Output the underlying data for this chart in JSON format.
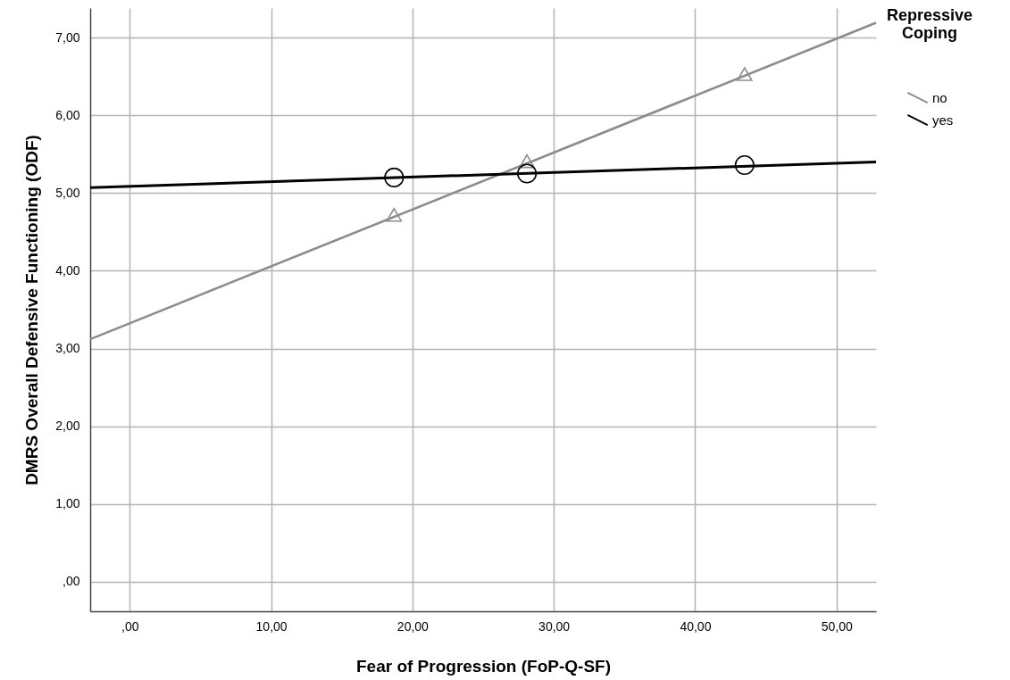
{
  "chart_data": {
    "type": "line",
    "xlabel": "Fear of Progression (FoP-Q-SF)",
    "ylabel": "DMRS Overall Defensive Functioning (ODF)",
    "legend_title": "Repressive Coping",
    "legend": "right",
    "grid": true,
    "xlim": [
      -2.8,
      52.8
    ],
    "ylim": [
      -0.38,
      7.38
    ],
    "xticks": [
      {
        "value": 0,
        "label": ",00"
      },
      {
        "value": 10,
        "label": "10,00"
      },
      {
        "value": 20,
        "label": "20,00"
      },
      {
        "value": 30,
        "label": "30,00"
      },
      {
        "value": 40,
        "label": "40,00"
      },
      {
        "value": 50,
        "label": "50,00"
      }
    ],
    "yticks": [
      {
        "value": 0,
        "label": ",00"
      },
      {
        "value": 1,
        "label": "1,00"
      },
      {
        "value": 2,
        "label": "2,00"
      },
      {
        "value": 3,
        "label": "3,00"
      },
      {
        "value": 4,
        "label": "4,00"
      },
      {
        "value": 5,
        "label": "5,00"
      },
      {
        "value": 6,
        "label": "6,00"
      },
      {
        "value": 7,
        "label": "7,00"
      }
    ],
    "series": [
      {
        "name": "no",
        "color": "#8c8c8c",
        "x": [
          -2.8,
          52.8
        ],
        "values": [
          3.12,
          7.19
        ]
      },
      {
        "name": "yes",
        "color": "#000000",
        "x": [
          -2.8,
          52.8
        ],
        "values": [
          5.07,
          5.4
        ]
      },
      {
        "type": "scatter",
        "marker": "triangle",
        "color": "#8c8c8c",
        "x": [
          18.7,
          28.1,
          43.5
        ],
        "values": [
          4.72,
          5.41,
          6.53
        ]
      },
      {
        "type": "scatter",
        "marker": "circle",
        "color": "#000000",
        "x": [
          18.7,
          28.1,
          43.5
        ],
        "values": [
          5.2,
          5.25,
          5.36
        ]
      }
    ]
  }
}
